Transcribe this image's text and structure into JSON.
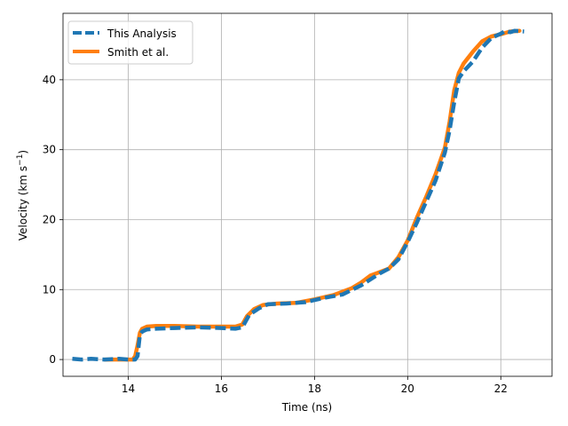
{
  "chart_data": {
    "type": "line",
    "xlabel": "Time (ns)",
    "ylabel_main": "Velocity (km s",
    "ylabel_sup": "−1",
    "ylabel_close": ")",
    "xlim": [
      12.6,
      23.1
    ],
    "ylim": [
      -2.4,
      49.5
    ],
    "xticks": [
      14,
      16,
      18,
      20,
      22
    ],
    "yticks": [
      0,
      10,
      20,
      30,
      40
    ],
    "grid": true,
    "legend": {
      "position": "top-left"
    },
    "series": [
      {
        "name": "This Analysis",
        "color": "#1f77b4",
        "style": "dashed",
        "x": [
          12.8,
          13.0,
          13.2,
          13.5,
          13.8,
          14.0,
          14.15,
          14.2,
          14.25,
          14.3,
          14.4,
          14.6,
          15.0,
          15.5,
          16.0,
          16.3,
          16.45,
          16.6,
          16.8,
          17.0,
          17.4,
          17.8,
          18.2,
          18.6,
          19.0,
          19.4,
          19.6,
          19.8,
          20.0,
          20.2,
          20.4,
          20.6,
          20.8,
          20.9,
          21.0,
          21.1,
          21.2,
          21.4,
          21.6,
          21.8,
          22.0,
          22.1,
          22.2,
          22.3,
          22.5
        ],
        "y": [
          0.1,
          0.0,
          0.1,
          0.0,
          0.1,
          0.0,
          0.0,
          0.5,
          3.5,
          4.0,
          4.3,
          4.4,
          4.5,
          4.6,
          4.5,
          4.4,
          4.6,
          6.4,
          7.3,
          7.9,
          8.0,
          8.2,
          8.8,
          9.3,
          10.6,
          12.3,
          13.0,
          14.3,
          16.8,
          19.6,
          22.6,
          25.6,
          29.6,
          32.8,
          36.8,
          40.2,
          41.2,
          42.6,
          44.6,
          46.0,
          46.6,
          47.0,
          46.8,
          47.0,
          46.9
        ]
      },
      {
        "name": "Smith et al.",
        "color": "#ff7f0e",
        "style": "solid",
        "x": [
          13.5,
          13.8,
          14.0,
          14.1,
          14.15,
          14.2,
          14.25,
          14.3,
          14.4,
          14.6,
          15.0,
          15.5,
          16.0,
          16.3,
          16.45,
          16.55,
          16.7,
          16.9,
          17.2,
          17.6,
          18.0,
          18.4,
          18.8,
          19.0,
          19.2,
          19.4,
          19.6,
          19.8,
          20.0,
          20.2,
          20.4,
          20.6,
          20.8,
          20.9,
          21.0,
          21.1,
          21.2,
          21.4,
          21.6,
          21.8,
          22.0,
          22.2,
          22.4
        ],
        "y": [
          0.0,
          0.0,
          0.0,
          0.0,
          0.5,
          2.0,
          3.8,
          4.4,
          4.7,
          4.8,
          4.8,
          4.7,
          4.7,
          4.7,
          5.0,
          6.2,
          7.2,
          7.8,
          8.0,
          8.1,
          8.6,
          9.2,
          10.2,
          11.0,
          12.0,
          12.5,
          13.0,
          14.6,
          17.0,
          20.3,
          23.3,
          26.5,
          30.3,
          34.0,
          38.5,
          41.0,
          42.3,
          44.0,
          45.5,
          46.2,
          46.5,
          46.9,
          47.0
        ]
      }
    ]
  }
}
